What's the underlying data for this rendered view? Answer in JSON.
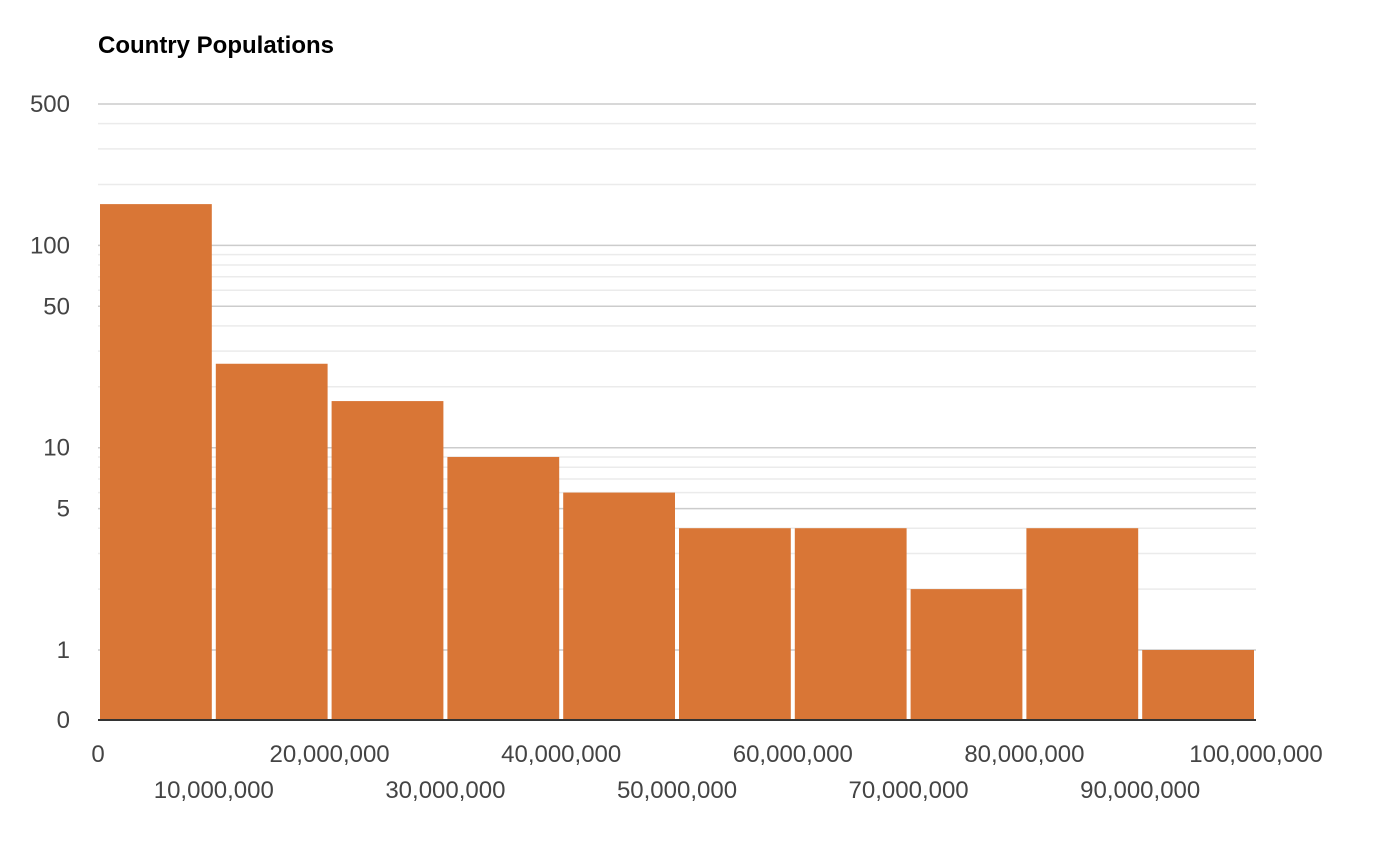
{
  "chart_data": {
    "type": "bar",
    "title": "Country Populations",
    "xlabel": "",
    "ylabel": "",
    "x_scale": "linear",
    "y_scale": "log",
    "xlim": [
      0,
      100000000
    ],
    "ylim": [
      0,
      500
    ],
    "grid": true,
    "legend": "none",
    "bar_color": "#d97636",
    "bins": [
      {
        "x0": 0,
        "x1": 10000000,
        "value": 160
      },
      {
        "x0": 10000000,
        "x1": 20000000,
        "value": 26
      },
      {
        "x0": 20000000,
        "x1": 30000000,
        "value": 17
      },
      {
        "x0": 30000000,
        "x1": 40000000,
        "value": 9
      },
      {
        "x0": 40000000,
        "x1": 50000000,
        "value": 6
      },
      {
        "x0": 50000000,
        "x1": 60000000,
        "value": 4
      },
      {
        "x0": 60000000,
        "x1": 70000000,
        "value": 4
      },
      {
        "x0": 70000000,
        "x1": 80000000,
        "value": 2
      },
      {
        "x0": 80000000,
        "x1": 90000000,
        "value": 4
      },
      {
        "x0": 90000000,
        "x1": 100000000,
        "value": 1
      }
    ],
    "x_ticks": [
      {
        "value": 0,
        "label": "0"
      },
      {
        "value": 10000000,
        "label": "10,000,000"
      },
      {
        "value": 20000000,
        "label": "20,000,000"
      },
      {
        "value": 30000000,
        "label": "30,000,000"
      },
      {
        "value": 40000000,
        "label": "40,000,000"
      },
      {
        "value": 50000000,
        "label": "50,000,000"
      },
      {
        "value": 60000000,
        "label": "60,000,000"
      },
      {
        "value": 70000000,
        "label": "70,000,000"
      },
      {
        "value": 80000000,
        "label": "80,000,000"
      },
      {
        "value": 90000000,
        "label": "90,000,000"
      },
      {
        "value": 100000000,
        "label": "100,000,000"
      }
    ],
    "y_ticks": [
      {
        "value": 0,
        "label": "0"
      },
      {
        "value": 1,
        "label": "1"
      },
      {
        "value": 5,
        "label": "5"
      },
      {
        "value": 10,
        "label": "10"
      },
      {
        "value": 50,
        "label": "50"
      },
      {
        "value": 100,
        "label": "100"
      },
      {
        "value": 500,
        "label": "500"
      }
    ]
  }
}
